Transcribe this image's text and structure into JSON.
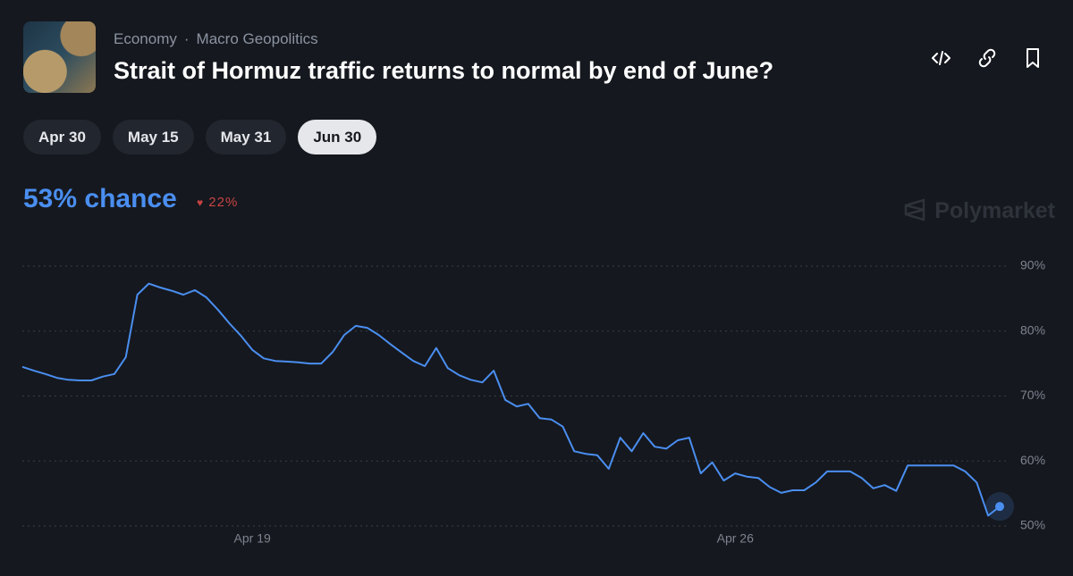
{
  "header": {
    "category": "Economy",
    "subcategory": "Macro Geopolitics",
    "title": "Strait of Hormuz traffic returns to normal by end of June?"
  },
  "tabs": [
    "Apr 30",
    "May 15",
    "May 31",
    "Jun 30"
  ],
  "selected_tab": 3,
  "chance": "53% chance",
  "change": "22%",
  "brand": "Polymarket",
  "chart_data": {
    "type": "line",
    "color": "#4a8ef0",
    "grid": true,
    "categories": [
      null,
      null,
      null,
      null,
      null,
      null,
      null,
      null,
      null,
      null,
      null,
      null,
      null,
      null,
      null,
      null,
      null,
      null,
      null,
      null,
      "Apr 19",
      null,
      null,
      null,
      null,
      null,
      null,
      null,
      null,
      null,
      null,
      null,
      null,
      null,
      null,
      null,
      null,
      null,
      null,
      null,
      null,
      null,
      null,
      null,
      null,
      null,
      null,
      null,
      null,
      null,
      null,
      null,
      null,
      null,
      null,
      null,
      null,
      null,
      null,
      null,
      null,
      null,
      "Apr 26",
      null,
      null,
      null,
      null,
      null,
      null,
      null,
      null,
      null,
      null,
      null,
      null,
      null,
      null,
      null,
      null,
      null,
      null,
      null,
      null,
      null,
      null,
      null
    ],
    "values": [
      74.5,
      73.9,
      73.4,
      72.8,
      72.5,
      72.4,
      72.4,
      73.0,
      73.4,
      76.0,
      85.6,
      87.3,
      86.7,
      86.2,
      85.6,
      86.3,
      85.2,
      83.3,
      81.2,
      79.3,
      77.1,
      75.8,
      75.4,
      75.3,
      75.2,
      75.0,
      75.0,
      76.8,
      79.4,
      80.8,
      80.5,
      79.4,
      78.0,
      76.7,
      75.4,
      74.6,
      77.4,
      74.3,
      73.2,
      72.5,
      72.1,
      73.9,
      69.4,
      68.4,
      68.8,
      66.6,
      66.4,
      65.3,
      61.5,
      61.1,
      60.9,
      58.8,
      63.6,
      61.5,
      64.3,
      62.2,
      61.9,
      63.2,
      63.6,
      58.1,
      59.8,
      57.0,
      58.1,
      57.6,
      57.4,
      56.0,
      55.1,
      55.5,
      55.5,
      56.7,
      58.4,
      58.4,
      58.4,
      57.4,
      55.8,
      56.3,
      55.4,
      59.3,
      59.3,
      59.3,
      59.3,
      59.3,
      58.4,
      56.7,
      51.6,
      53
    ],
    "ylim": [
      50,
      90
    ],
    "yticks": [
      {
        "value": 50,
        "label": "50%"
      },
      {
        "value": 60,
        "label": "60%"
      },
      {
        "value": 70,
        "label": "70%"
      },
      {
        "value": 80,
        "label": "80%"
      },
      {
        "value": 90,
        "label": "90%"
      }
    ]
  }
}
